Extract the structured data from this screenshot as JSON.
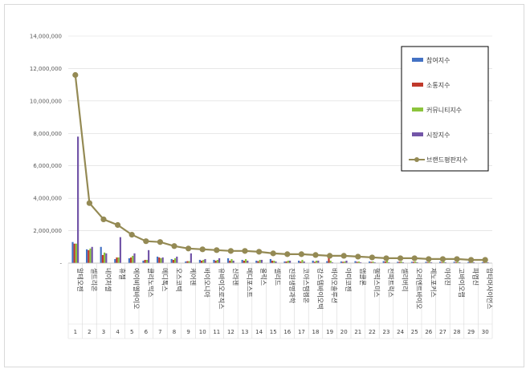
{
  "chart_data": {
    "type": "bar",
    "ylim": [
      0,
      14000000
    ],
    "yticks": [
      "14,000,000",
      "12,000,000",
      "10,000,000",
      "8,000,000",
      "6,000,000",
      "4,000,000",
      "2,000,000",
      "-"
    ],
    "ranks": [
      "1",
      "2",
      "3",
      "4",
      "5",
      "6",
      "7",
      "8",
      "9",
      "10",
      "11",
      "12",
      "13",
      "14",
      "15",
      "16",
      "17",
      "18",
      "19",
      "20",
      "21",
      "22",
      "23",
      "24",
      "25",
      "26",
      "27",
      "28",
      "29",
      "30"
    ],
    "categories": [
      "알테오젠",
      "셀트리온",
      "네이처셀",
      "휴젤",
      "에이비엘바이오",
      "클리노믹스",
      "메디톡스",
      "오스코텍",
      "케어젠",
      "바이오니아",
      "유바이오로직스",
      "신라젠",
      "메디포스트",
      "올릭스",
      "셀리드",
      "진원생명과학",
      "코아스템켐온",
      "강스템바이오텍",
      "바이오솔루션",
      "아미코젠",
      "앱클론",
      "헬릭스미스",
      "전파트릭스",
      "셀리버리",
      "오리엔트바이오",
      "제노포커스",
      "아이진",
      "고바이오랩",
      "파멥신",
      "압타머사이언스"
    ],
    "series": [
      {
        "name": "참여지수",
        "color": "#4472c4",
        "values": [
          1300000,
          850000,
          1000000,
          250000,
          300000,
          150000,
          400000,
          250000,
          100000,
          200000,
          200000,
          300000,
          200000,
          150000,
          250000,
          100000,
          150000,
          150000,
          120000,
          100000,
          120000,
          100000,
          120000,
          80000,
          80000,
          80000,
          80000,
          80000,
          70000,
          60000
        ]
      },
      {
        "name": "소통지수",
        "color": "#c0392b",
        "values": [
          1200000,
          800000,
          500000,
          350000,
          350000,
          200000,
          350000,
          200000,
          120000,
          150000,
          150000,
          150000,
          150000,
          120000,
          150000,
          100000,
          100000,
          80000,
          350000,
          80000,
          80000,
          80000,
          100000,
          80000,
          80000,
          60000,
          60000,
          60000,
          60000,
          60000
        ]
      },
      {
        "name": "커뮤니티지수",
        "color": "#8cc43c",
        "values": [
          1200000,
          900000,
          650000,
          350000,
          450000,
          200000,
          300000,
          300000,
          120000,
          200000,
          200000,
          250000,
          250000,
          200000,
          150000,
          150000,
          200000,
          150000,
          150000,
          100000,
          100000,
          100000,
          150000,
          100000,
          100000,
          80000,
          100000,
          80000,
          80000,
          80000
        ]
      },
      {
        "name": "시장지수",
        "color": "#7356a8",
        "values": [
          7800000,
          1000000,
          600000,
          1600000,
          600000,
          800000,
          350000,
          400000,
          600000,
          250000,
          300000,
          150000,
          150000,
          200000,
          100000,
          150000,
          100000,
          150000,
          50000,
          150000,
          50000,
          50000,
          50000,
          50000,
          50000,
          50000,
          50000,
          50000,
          50000,
          50000
        ]
      }
    ],
    "line": {
      "name": "브랜드평판지수",
      "color": "#948a54",
      "values": [
        11600000,
        3700000,
        2700000,
        2350000,
        1750000,
        1350000,
        1300000,
        1050000,
        900000,
        850000,
        800000,
        750000,
        750000,
        700000,
        600000,
        550000,
        550000,
        500000,
        450000,
        450000,
        400000,
        350000,
        300000,
        300000,
        300000,
        250000,
        250000,
        250000,
        200000,
        200000
      ]
    }
  }
}
